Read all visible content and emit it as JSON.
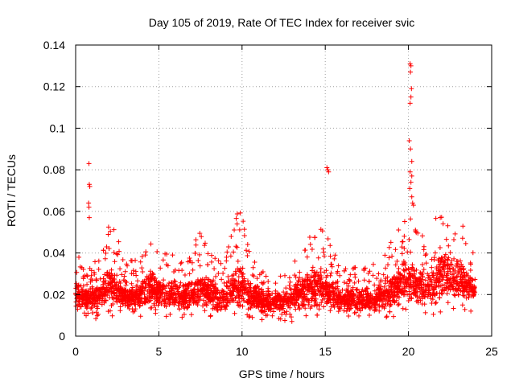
{
  "chart_data": {
    "type": "scatter",
    "title": "Day 105 of 2019, Rate Of TEC Index for receiver svic",
    "xlabel": "GPS time / hours",
    "ylabel": "ROTI / TECUs",
    "xlim": [
      0,
      25
    ],
    "ylim": [
      0,
      0.14
    ],
    "x_ticks": [
      0,
      5,
      10,
      15,
      20,
      25
    ],
    "x_tick_labels": [
      "0",
      "5",
      "10",
      "15",
      "20",
      "25"
    ],
    "y_ticks": [
      0,
      0.02,
      0.04,
      0.06,
      0.08,
      0.1,
      0.12,
      0.14
    ],
    "y_tick_labels": [
      "0",
      "0.02",
      "0.04",
      "0.06",
      "0.08",
      "0.1",
      "0.12",
      "0.14"
    ],
    "grid": true,
    "marker": "+",
    "marker_color": "#ff0000",
    "series": [
      {
        "name": "ROTI",
        "envelope_hours": [
          0,
          0.5,
          1,
          1.5,
          2,
          2.5,
          3,
          3.5,
          4,
          4.5,
          5,
          5.5,
          6,
          6.5,
          7,
          7.5,
          8,
          8.5,
          9,
          9.5,
          10,
          10.5,
          11,
          11.5,
          12,
          12.5,
          13,
          13.5,
          14,
          14.5,
          15,
          15.5,
          16,
          16.5,
          17,
          17.5,
          18,
          18.5,
          19,
          19.5,
          20,
          20.5,
          21,
          21.5,
          22,
          22.5,
          23,
          23.5,
          24
        ],
        "envelope_low": [
          0.009,
          0.01,
          0.008,
          0.009,
          0.01,
          0.009,
          0.008,
          0.008,
          0.008,
          0.009,
          0.009,
          0.008,
          0.009,
          0.009,
          0.008,
          0.01,
          0.009,
          0.009,
          0.008,
          0.009,
          0.009,
          0.008,
          0.007,
          0.008,
          0.008,
          0.007,
          0.007,
          0.008,
          0.008,
          0.008,
          0.008,
          0.008,
          0.008,
          0.008,
          0.008,
          0.008,
          0.007,
          0.008,
          0.009,
          0.01,
          0.01,
          0.01,
          0.01,
          0.01,
          0.01,
          0.012,
          0.012,
          0.012,
          0.012
        ],
        "envelope_high": [
          0.046,
          0.032,
          0.035,
          0.038,
          0.056,
          0.048,
          0.035,
          0.038,
          0.04,
          0.048,
          0.048,
          0.04,
          0.04,
          0.035,
          0.046,
          0.05,
          0.042,
          0.036,
          0.04,
          0.058,
          0.06,
          0.04,
          0.035,
          0.03,
          0.032,
          0.03,
          0.036,
          0.048,
          0.053,
          0.055,
          0.05,
          0.045,
          0.035,
          0.035,
          0.035,
          0.035,
          0.035,
          0.04,
          0.046,
          0.053,
          0.06,
          0.05,
          0.05,
          0.056,
          0.062,
          0.06,
          0.06,
          0.048,
          0.038
        ],
        "bulk_low": [
          0.012,
          0.014,
          0.012,
          0.013,
          0.016,
          0.013,
          0.012,
          0.012,
          0.013,
          0.014,
          0.013,
          0.012,
          0.013,
          0.012,
          0.012,
          0.014,
          0.013,
          0.012,
          0.012,
          0.013,
          0.013,
          0.012,
          0.011,
          0.011,
          0.011,
          0.011,
          0.011,
          0.012,
          0.013,
          0.013,
          0.012,
          0.012,
          0.011,
          0.011,
          0.011,
          0.011,
          0.011,
          0.012,
          0.014,
          0.015,
          0.016,
          0.015,
          0.015,
          0.016,
          0.017,
          0.018,
          0.018,
          0.018,
          0.016
        ],
        "bulk_high": [
          0.03,
          0.022,
          0.024,
          0.026,
          0.034,
          0.03,
          0.024,
          0.026,
          0.028,
          0.032,
          0.03,
          0.026,
          0.027,
          0.025,
          0.028,
          0.032,
          0.028,
          0.025,
          0.027,
          0.034,
          0.034,
          0.027,
          0.024,
          0.022,
          0.023,
          0.022,
          0.025,
          0.03,
          0.034,
          0.035,
          0.032,
          0.029,
          0.024,
          0.024,
          0.024,
          0.024,
          0.024,
          0.027,
          0.03,
          0.034,
          0.038,
          0.033,
          0.033,
          0.036,
          0.04,
          0.039,
          0.038,
          0.032,
          0.026
        ],
        "outliers": [
          {
            "x": 0.8,
            "y": 0.083
          },
          {
            "x": 0.82,
            "y": 0.073
          },
          {
            "x": 0.85,
            "y": 0.072
          },
          {
            "x": 0.78,
            "y": 0.064
          },
          {
            "x": 0.8,
            "y": 0.062
          },
          {
            "x": 0.82,
            "y": 0.057
          },
          {
            "x": 15.1,
            "y": 0.081
          },
          {
            "x": 15.15,
            "y": 0.08
          },
          {
            "x": 15.2,
            "y": 0.079
          },
          {
            "x": 20.1,
            "y": 0.131
          },
          {
            "x": 20.15,
            "y": 0.13
          },
          {
            "x": 20.12,
            "y": 0.127
          },
          {
            "x": 20.18,
            "y": 0.119
          },
          {
            "x": 20.15,
            "y": 0.115
          },
          {
            "x": 20.1,
            "y": 0.112
          },
          {
            "x": 20.05,
            "y": 0.094
          },
          {
            "x": 20.12,
            "y": 0.09
          },
          {
            "x": 20.2,
            "y": 0.084
          },
          {
            "x": 20.1,
            "y": 0.079
          },
          {
            "x": 20.2,
            "y": 0.077
          },
          {
            "x": 20.15,
            "y": 0.074
          },
          {
            "x": 20.08,
            "y": 0.071
          },
          {
            "x": 20.2,
            "y": 0.067
          },
          {
            "x": 20.25,
            "y": 0.064
          },
          {
            "x": 20.3,
            "y": 0.063
          }
        ]
      }
    ]
  }
}
